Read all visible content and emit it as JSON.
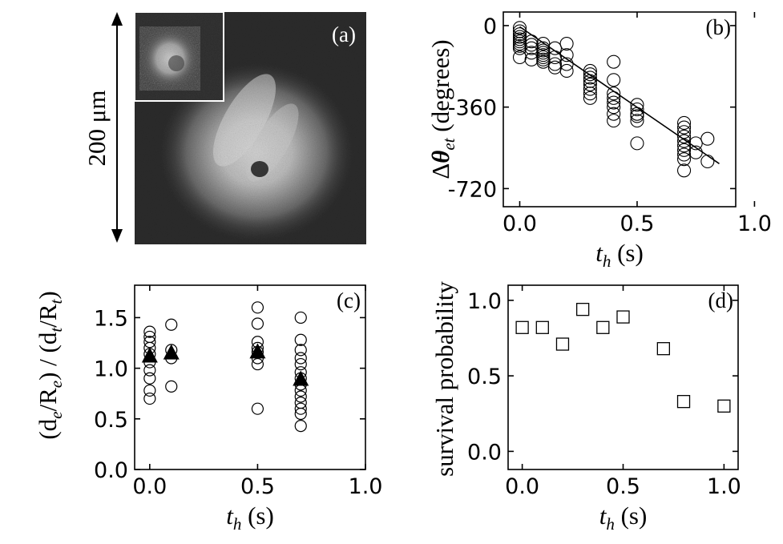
{
  "panel_a": {
    "label": "(a)",
    "scale_text": "200 μm"
  },
  "chart_data": [
    {
      "id": "b",
      "type": "scatter",
      "panel_label": "(b)",
      "xlabel_main": "t",
      "xlabel_sub": "h",
      "xlabel_unit": " (s)",
      "ylabel_delta": "Δ",
      "ylabel_theta": "θ",
      "ylabel_sub": "et",
      "ylabel_unit": " (degrees)",
      "xlim": [
        -0.07,
        0.92
      ],
      "ylim": [
        -800,
        60
      ],
      "xticks": [
        {
          "v": 0,
          "label": "0.0"
        },
        {
          "v": 0.5,
          "label": "0.5"
        },
        {
          "v": 1.0,
          "label": "1.0"
        }
      ],
      "yticks": [
        {
          "v": 0,
          "label": "0"
        },
        {
          "v": -360,
          "label": "-360"
        },
        {
          "v": -720,
          "label": "-720"
        }
      ],
      "points": [
        [
          0,
          -10
        ],
        [
          0,
          -25
        ],
        [
          0,
          -38
        ],
        [
          0,
          -50
        ],
        [
          0,
          -60
        ],
        [
          0,
          -70
        ],
        [
          0,
          -80
        ],
        [
          0,
          -90
        ],
        [
          0,
          -100
        ],
        [
          0,
          -140
        ],
        [
          0.05,
          -70
        ],
        [
          0.05,
          -85
        ],
        [
          0.05,
          -100
        ],
        [
          0.05,
          -120
        ],
        [
          0.05,
          -150
        ],
        [
          0.1,
          -80
        ],
        [
          0.1,
          -100
        ],
        [
          0.1,
          -110
        ],
        [
          0.1,
          -120
        ],
        [
          0.1,
          -130
        ],
        [
          0.1,
          -140
        ],
        [
          0.1,
          -150
        ],
        [
          0.1,
          -160
        ],
        [
          0.15,
          -100
        ],
        [
          0.15,
          -140
        ],
        [
          0.15,
          -170
        ],
        [
          0.15,
          -185
        ],
        [
          0.2,
          -80
        ],
        [
          0.2,
          -130
        ],
        [
          0.2,
          -170
        ],
        [
          0.2,
          -200
        ],
        [
          0.3,
          -200
        ],
        [
          0.3,
          -215
        ],
        [
          0.3,
          -230
        ],
        [
          0.3,
          -245
        ],
        [
          0.3,
          -260
        ],
        [
          0.3,
          -280
        ],
        [
          0.3,
          -300
        ],
        [
          0.3,
          -320
        ],
        [
          0.4,
          -160
        ],
        [
          0.4,
          -240
        ],
        [
          0.4,
          -300
        ],
        [
          0.4,
          -320
        ],
        [
          0.4,
          -340
        ],
        [
          0.4,
          -360
        ],
        [
          0.4,
          -390
        ],
        [
          0.4,
          -420
        ],
        [
          0.5,
          -350
        ],
        [
          0.5,
          -370
        ],
        [
          0.5,
          -390
        ],
        [
          0.5,
          -400
        ],
        [
          0.5,
          -420
        ],
        [
          0.5,
          -520
        ],
        [
          0.7,
          -430
        ],
        [
          0.7,
          -450
        ],
        [
          0.7,
          -470
        ],
        [
          0.7,
          -490
        ],
        [
          0.7,
          -510
        ],
        [
          0.7,
          -530
        ],
        [
          0.7,
          -550
        ],
        [
          0.7,
          -570
        ],
        [
          0.7,
          -590
        ],
        [
          0.7,
          -640
        ],
        [
          0.75,
          -520
        ],
        [
          0.75,
          -560
        ],
        [
          0.8,
          -500
        ],
        [
          0.8,
          -600
        ]
      ],
      "fit_line": [
        [
          0,
          -5
        ],
        [
          0.85,
          -610
        ]
      ]
    },
    {
      "id": "c",
      "type": "scatter",
      "panel_label": "(c)",
      "xlabel_main": "t",
      "xlabel_sub": "h",
      "xlabel_unit": " (s)",
      "ylabel_parts": [
        "(d",
        "e",
        "/R",
        "e",
        ") / (d",
        "t",
        "/R",
        "t",
        ")"
      ],
      "xlim": [
        -0.07,
        1.0
      ],
      "ylim": [
        0,
        1.82
      ],
      "xticks": [
        {
          "v": 0,
          "label": "0.0"
        },
        {
          "v": 0.5,
          "label": "0.5"
        },
        {
          "v": 1.0,
          "label": "1.0"
        }
      ],
      "yticks": [
        {
          "v": 0,
          "label": "0.0"
        },
        {
          "v": 0.5,
          "label": "0.5"
        },
        {
          "v": 1.0,
          "label": "1.0"
        },
        {
          "v": 1.5,
          "label": "1.5"
        }
      ],
      "circles": [
        [
          0,
          1.36
        ],
        [
          0,
          1.31
        ],
        [
          0,
          1.26
        ],
        [
          0,
          1.2
        ],
        [
          0,
          1.14
        ],
        [
          0,
          1.06
        ],
        [
          0,
          0.98
        ],
        [
          0,
          0.9
        ],
        [
          0,
          0.78
        ],
        [
          0,
          0.7
        ],
        [
          0.1,
          1.43
        ],
        [
          0.1,
          1.18
        ],
        [
          0.1,
          1.1
        ],
        [
          0.1,
          0.82
        ],
        [
          0.5,
          1.6
        ],
        [
          0.5,
          1.44
        ],
        [
          0.5,
          1.26
        ],
        [
          0.5,
          1.2
        ],
        [
          0.5,
          1.16
        ],
        [
          0.5,
          1.1
        ],
        [
          0.5,
          1.04
        ],
        [
          0.5,
          0.6
        ],
        [
          0.7,
          1.5
        ],
        [
          0.7,
          1.28
        ],
        [
          0.7,
          1.18
        ],
        [
          0.7,
          1.1
        ],
        [
          0.7,
          1.04
        ],
        [
          0.7,
          0.96
        ],
        [
          0.7,
          0.9
        ],
        [
          0.7,
          0.84
        ],
        [
          0.7,
          0.78
        ],
        [
          0.7,
          0.72
        ],
        [
          0.7,
          0.66
        ],
        [
          0.7,
          0.6
        ],
        [
          0.7,
          0.55
        ],
        [
          0.7,
          0.43
        ]
      ],
      "triangles": [
        [
          0,
          1.12
        ],
        [
          0.1,
          1.15
        ],
        [
          0.5,
          1.16
        ],
        [
          0.7,
          0.89
        ]
      ]
    },
    {
      "id": "d",
      "type": "scatter",
      "panel_label": "(d)",
      "xlabel_main": "t",
      "xlabel_sub": "h",
      "xlabel_unit": " (s)",
      "ylabel": "survival probability",
      "xlim": [
        -0.07,
        1.07
      ],
      "ylim": [
        -0.12,
        1.1
      ],
      "xticks": [
        {
          "v": 0,
          "label": "0.0"
        },
        {
          "v": 0.5,
          "label": "0.5"
        },
        {
          "v": 1.0,
          "label": "1.0"
        }
      ],
      "yticks": [
        {
          "v": 0,
          "label": "0.0"
        },
        {
          "v": 0.5,
          "label": "0.5"
        },
        {
          "v": 1.0,
          "label": "1.0"
        }
      ],
      "squares": [
        [
          0,
          0.82
        ],
        [
          0.1,
          0.82
        ],
        [
          0.2,
          0.71
        ],
        [
          0.3,
          0.94
        ],
        [
          0.4,
          0.82
        ],
        [
          0.5,
          0.89
        ],
        [
          0.7,
          0.68
        ],
        [
          0.8,
          0.33
        ],
        [
          1.0,
          0.3
        ]
      ]
    }
  ]
}
